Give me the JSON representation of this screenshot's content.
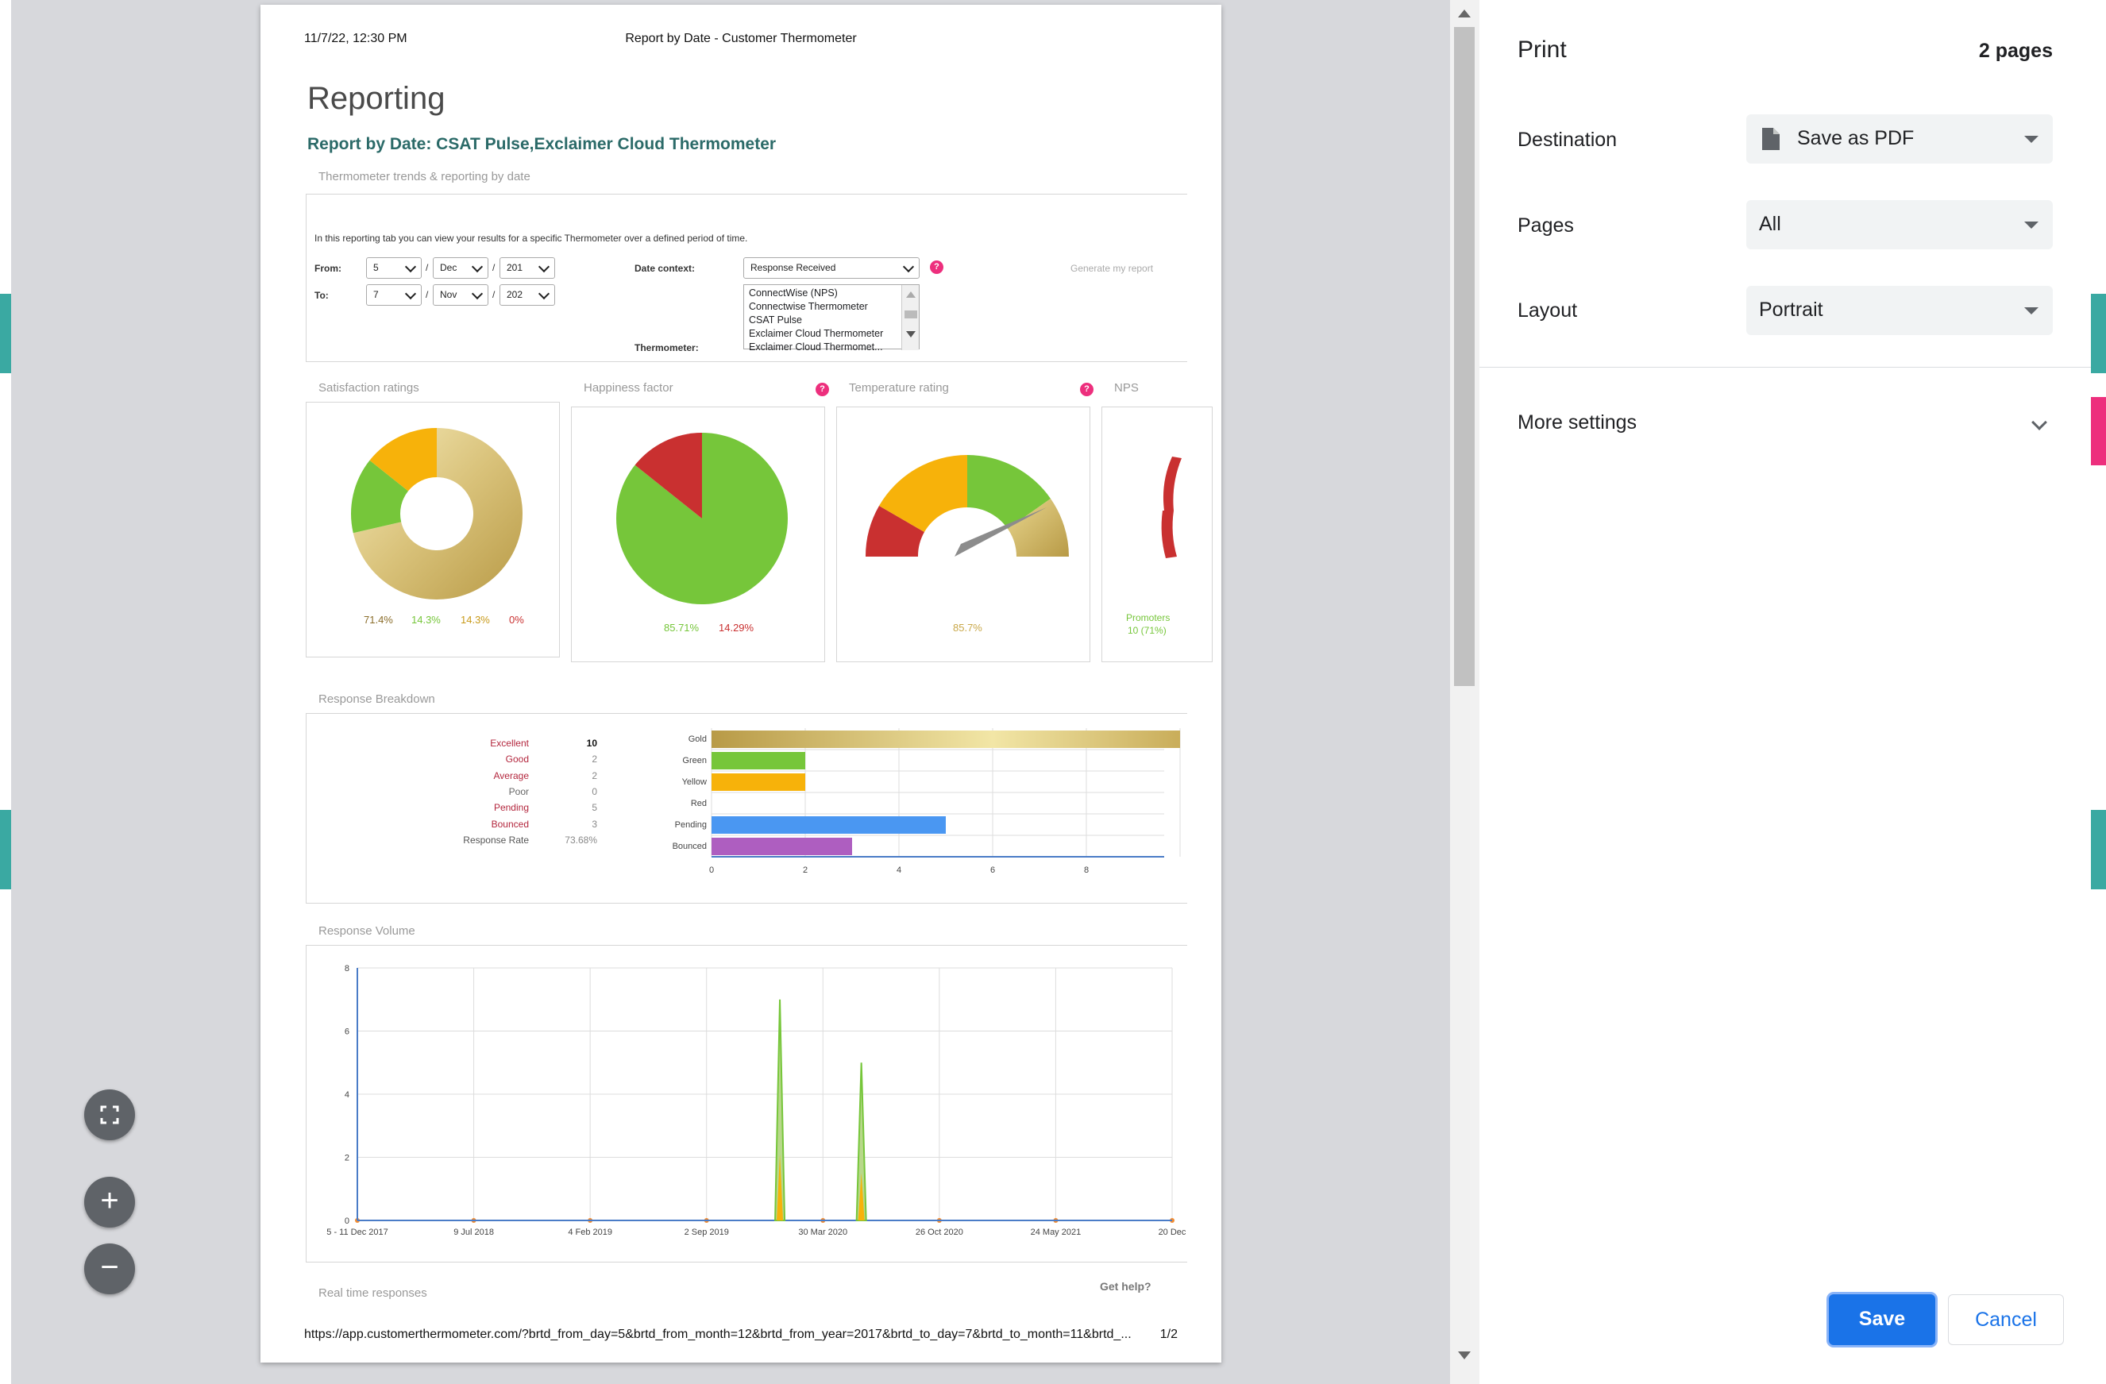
{
  "sheet": {
    "header_left": "11/7/22, 12:30 PM",
    "header_center": "Report by Date - Customer Thermometer",
    "footer_url": "https://app.customerthermometer.com/?brtd_from_day=5&brtd_from_month=12&brtd_from_year=2017&brtd_to_day=7&brtd_to_month=11&brtd_...",
    "footer_page": "1/2"
  },
  "report": {
    "title": "Reporting",
    "subtitle": "Report by Date: CSAT Pulse,Exclaimer Cloud Thermometer",
    "section_trends": "Thermometer trends & reporting by date",
    "intro": "In this reporting tab you can view your results for a specific Thermometer over a defined period of time.",
    "from_label": "From:",
    "to_label": "To:",
    "from_day": "5",
    "from_month": "Dec",
    "from_year": "201",
    "to_day": "7",
    "to_month": "Nov",
    "to_year": "202",
    "slash": "/",
    "date_context_label": "Date context:",
    "date_context_value": "Response Received",
    "thermometer_label": "Thermometer:",
    "thermometer_options": [
      "ConnectWise (NPS)",
      "Connectwise Thermometer",
      "CSAT Pulse",
      "Exclaimer Cloud Thermometer",
      "Exclaimer Cloud Thermomet..."
    ],
    "generate_label": "Generate my report",
    "section_satisfaction": "Satisfaction ratings",
    "section_happiness": "Happiness factor",
    "section_temperature": "Temperature rating",
    "section_nps": "NPS",
    "satisfaction_pcts": [
      "71.4%",
      "14.3%",
      "14.3%",
      "0%"
    ],
    "happiness_pcts": [
      "85.71%",
      "14.29%"
    ],
    "temperature_pct": "85.7%",
    "nps_promoters": "Promoters",
    "nps_promoters_count": "10 (71%)",
    "qmark": "?",
    "section_breakdown": "Response Breakdown",
    "breakdown": [
      {
        "label": "Excellent",
        "value": "10"
      },
      {
        "label": "Good",
        "value": "2"
      },
      {
        "label": "Average",
        "value": "2"
      },
      {
        "label": "Poor",
        "value": "0"
      },
      {
        "label": "Pending",
        "value": "5"
      },
      {
        "label": "Bounced",
        "value": "3"
      },
      {
        "label": "Response Rate",
        "value": "73.68%"
      }
    ],
    "section_volume": "Response Volume",
    "section_realtime": "Real time responses",
    "help_label": "Get help?"
  },
  "chart_data": [
    {
      "type": "pie",
      "labels": [
        "Gold",
        "Green",
        "Yellow",
        "Red"
      ],
      "values": [
        71.4,
        14.3,
        14.3,
        0
      ],
      "colors": [
        "#d8c070",
        "#76c63a",
        "#f7b20a",
        "#c93030"
      ]
    },
    {
      "type": "pie",
      "values": [
        85.71,
        14.29
      ],
      "colors": [
        "#76c63a",
        "#c93030"
      ]
    },
    {
      "type": "bar",
      "orientation": "horizontal",
      "categories": [
        "Gold",
        "Green",
        "Yellow",
        "Red",
        "Pending",
        "Bounced"
      ],
      "values": [
        10,
        2,
        2,
        0,
        5,
        3
      ],
      "colors": [
        "#d8c070",
        "#76c63a",
        "#f7b20a",
        "#c93030",
        "#4a97f2",
        "#ae5ec0"
      ],
      "xticks": [
        "0",
        "2",
        "4",
        "6",
        "8"
      ],
      "xlim": [
        0,
        10
      ]
    },
    {
      "type": "line",
      "x_ticks": [
        "5 - 11 Dec 2017",
        "9 Jul 2018",
        "4 Feb 2019",
        "2 Sep 2019",
        "30 Mar 2020",
        "26 Oct 2020",
        "24 May 2021",
        "20 Dec"
      ],
      "y_ticks": [
        "0",
        "2",
        "4",
        "6",
        "8"
      ],
      "ylim": [
        0,
        8
      ],
      "peaks": [
        {
          "x_index": 3.63,
          "value": 7
        },
        {
          "x_index": 4.33,
          "value": 5
        }
      ]
    }
  ],
  "panel": {
    "title": "Print",
    "pages_count": "2 pages",
    "destination_label": "Destination",
    "destination_value": "Save as PDF",
    "pages_label": "Pages",
    "pages_value": "All",
    "layout_label": "Layout",
    "layout_value": "Portrait",
    "more_settings": "More settings",
    "save": "Save",
    "cancel": "Cancel"
  },
  "zoom": {
    "fit": "fit-icon",
    "plus": "+",
    "minus": "−"
  }
}
